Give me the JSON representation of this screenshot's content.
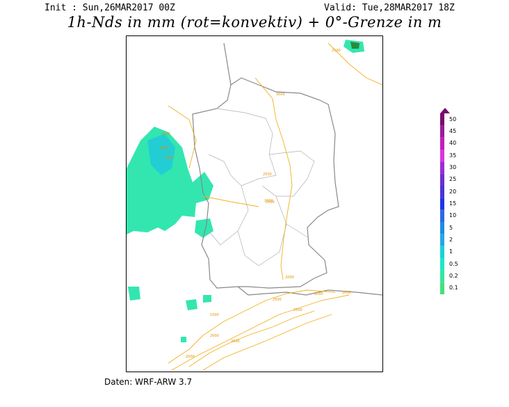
{
  "header": {
    "init_text": "Init : Sun,26MAR2017 00Z",
    "valid_text": "Valid: Tue,28MAR2017 18Z",
    "title": "1h-Nds in mm (rot=konvektiv) + 0°-Grenze in m"
  },
  "footer": {
    "source": "Daten: WRF-ARW 3.7"
  },
  "legend": {
    "levels": [
      "50",
      "45",
      "40",
      "35",
      "30",
      "25",
      "20",
      "15",
      "10",
      "5",
      "2",
      "1",
      "0.5",
      "0.2",
      "0.1"
    ],
    "colors": [
      "#7a0a6e",
      "#9a1a99",
      "#c01fb9",
      "#dd33dd",
      "#9b2bd8",
      "#6d2fd0",
      "#4b33d8",
      "#2233e6",
      "#2f67e6",
      "#1e8be6",
      "#24a7e6",
      "#19d2d6",
      "#20e6c8",
      "#33e69e",
      "#44e07a"
    ]
  },
  "contour_labels": [
    "2000",
    "2500",
    "2000",
    "3000",
    "3000",
    "2000",
    "2500",
    "2500",
    "2500",
    "2500",
    "3000",
    "2000",
    "2000",
    "2000",
    "2500",
    "1500",
    "2000"
  ],
  "colors": {
    "freezing_level": "#f0b020",
    "precip_light": "#33e6b0",
    "precip_mid": "#1ec8dd",
    "border": "#888888"
  }
}
